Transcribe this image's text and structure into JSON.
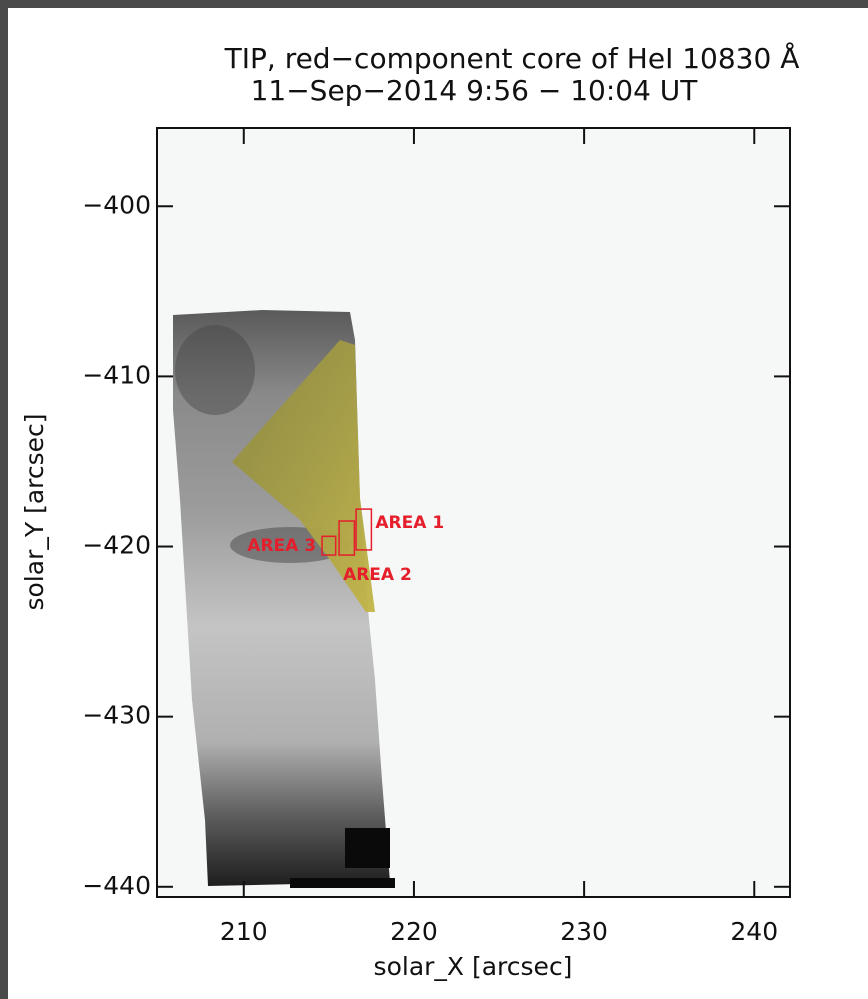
{
  "chart_data": {
    "type": "image",
    "title": "TIP, red−component core of HeI 10830 Å",
    "subtitle": "11−Sep−2014 9:56  −  10:04 UT",
    "x_label": "solar_X [arcsec]",
    "y_label": "solar_Y [arcsec]",
    "xlim": [
      204.9,
      242.1
    ],
    "ylim": [
      -440.6,
      -395.4
    ],
    "xticks": [
      210,
      220,
      230,
      240
    ],
    "yticks": [
      {
        "value": -400,
        "label": "−400"
      },
      {
        "value": -410,
        "label": "−410"
      },
      {
        "value": -420,
        "label": "−420"
      },
      {
        "value": -430,
        "label": "−430"
      },
      {
        "value": -440,
        "label": "−440"
      }
    ],
    "annotation_color": "#e41e2b",
    "annotations": [
      {
        "label": "AREA 1",
        "x": [
          216.6,
          217.5
        ],
        "y": [
          -420.2,
          -417.8
        ]
      },
      {
        "label": "AREA 2",
        "x": [
          215.6,
          216.5
        ],
        "y": [
          -420.5,
          -418.5
        ]
      },
      {
        "label": "AREA 3",
        "x": [
          214.6,
          215.4
        ],
        "y": [
          -420.5,
          -419.4
        ]
      }
    ]
  }
}
